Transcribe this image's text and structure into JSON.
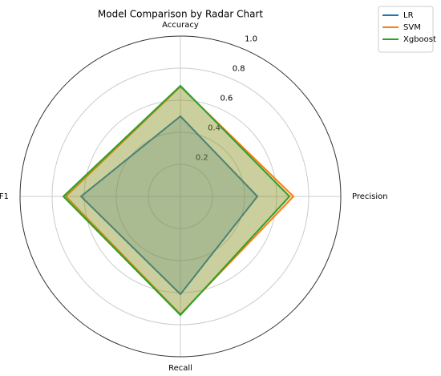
{
  "chart_data": {
    "type": "radar",
    "title": "Model Comparison by Radar Chart",
    "categories": [
      "Accuracy",
      "Precision",
      "Recall",
      "F1"
    ],
    "series": [
      {
        "name": "LR",
        "color": "#1f77b4",
        "values": [
          0.5,
          0.48,
          0.61,
          0.62
        ]
      },
      {
        "name": "SVM",
        "color": "#ff7f0e",
        "values": [
          0.685,
          0.705,
          0.735,
          0.715
        ]
      },
      {
        "name": "Xgboost",
        "color": "#2ca02c",
        "values": [
          0.69,
          0.68,
          0.74,
          0.73
        ]
      }
    ],
    "rlim": [
      0,
      1
    ],
    "rticks": [
      0.2,
      0.4,
      0.6,
      0.8,
      {
        "value": 1,
        "label": "1.0"
      }
    ],
    "grid": true,
    "legend": "upper right"
  }
}
